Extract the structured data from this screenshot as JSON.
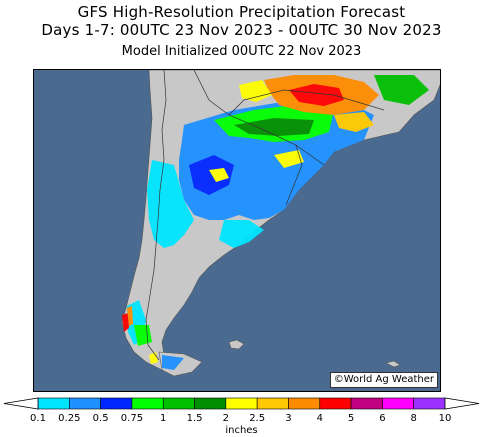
{
  "header": {
    "title": "GFS High-Resolution Precipitation Forecast",
    "period": "Days 1-7: 00UTC 23 Nov 2023 - 00UTC 30 Nov 2023",
    "init": "Model Initialized 00UTC 22 Nov 2023"
  },
  "map": {
    "region": "Southern South America",
    "credit": "©World Ag Weather",
    "colors": {
      "ocean": "#4a6b8f",
      "land": "#c8c8c8",
      "borders": "#333333"
    }
  },
  "legend": {
    "units": "inches",
    "ticks": [
      "0.1",
      "0.25",
      "0.5",
      "0.75",
      "1",
      "1.5",
      "2",
      "2.5",
      "3",
      "4",
      "5",
      "6",
      "8",
      "10"
    ],
    "colors": [
      "#00e5ff",
      "#1e90ff",
      "#0026ff",
      "#00ff00",
      "#00c000",
      "#008f00",
      "#ffff00",
      "#ffc800",
      "#ff8c00",
      "#ff0000",
      "#c00080",
      "#ff00ff",
      "#9b30ff"
    ]
  }
}
